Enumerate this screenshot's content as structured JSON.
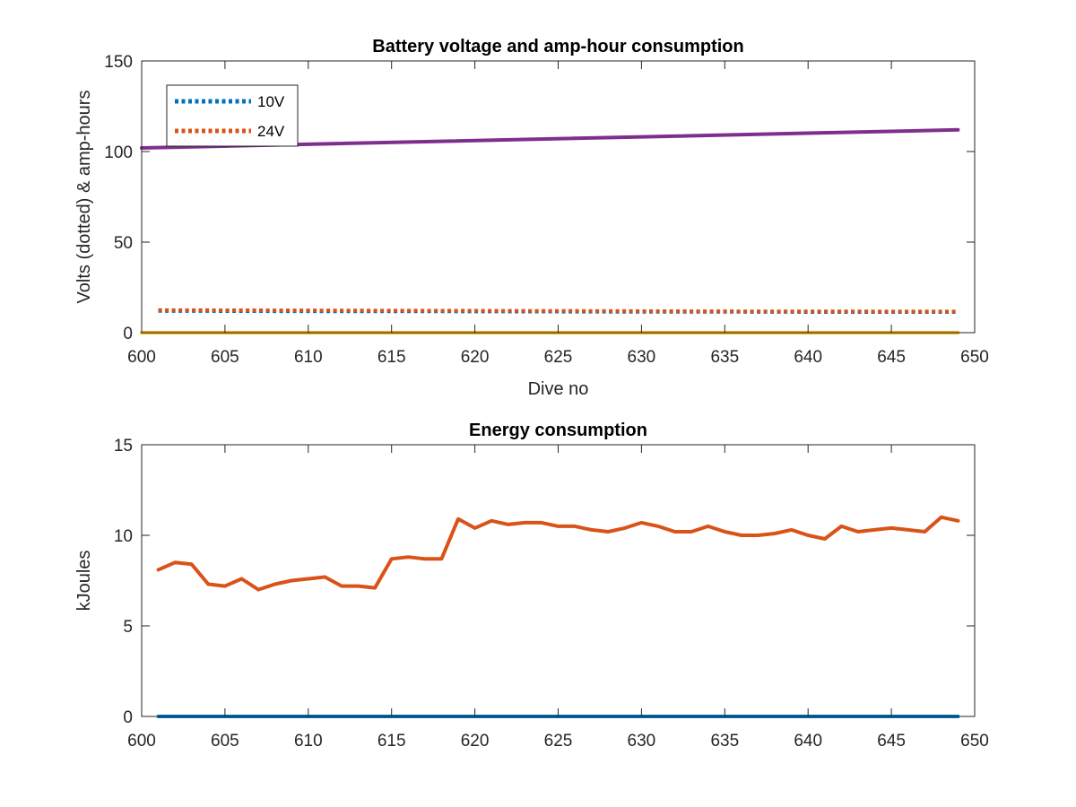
{
  "chart_data": [
    {
      "type": "line",
      "title": "Battery voltage and amp-hour consumption",
      "xlabel": "Dive no",
      "ylabel": "Volts (dotted) & amp-hours",
      "xlim": [
        600,
        650
      ],
      "ylim": [
        0,
        150
      ],
      "xticks": [
        "600",
        "605",
        "610",
        "615",
        "620",
        "625",
        "630",
        "635",
        "640",
        "645",
        "650"
      ],
      "yticks": [
        "0",
        "50",
        "100",
        "150"
      ],
      "grid": false,
      "legend": "top-left",
      "series": [
        {
          "name": "10V",
          "style": "dotted",
          "color": "#0072BD",
          "x": [
            601,
            606,
            611,
            616,
            621,
            626,
            631,
            636,
            641,
            646,
            649
          ],
          "values": [
            12.0,
            11.9,
            11.8,
            11.8,
            11.7,
            11.6,
            11.5,
            11.5,
            11.4,
            11.4,
            11.4
          ]
        },
        {
          "name": "24V",
          "style": "dotted",
          "color": "#D95319",
          "x": [
            601,
            606,
            611,
            616,
            621,
            626,
            631,
            636,
            641,
            646,
            649
          ],
          "values": [
            12.5,
            12.4,
            12.3,
            12.2,
            12.1,
            12.0,
            11.9,
            11.8,
            11.8,
            11.7,
            11.7
          ]
        },
        {
          "style": "solid",
          "color": "#7E2F8E",
          "x": [
            600,
            649
          ],
          "values": [
            102,
            112
          ]
        },
        {
          "style": "solid",
          "color": "#EDB120",
          "x": [
            600,
            649
          ],
          "values": [
            0,
            0
          ]
        }
      ]
    },
    {
      "type": "line",
      "title": "Energy consumption",
      "xlabel": "",
      "ylabel": "kJoules",
      "xlim": [
        600,
        650
      ],
      "ylim": [
        0,
        15
      ],
      "xticks": [
        "600",
        "605",
        "610",
        "615",
        "620",
        "625",
        "630",
        "635",
        "640",
        "645",
        "650"
      ],
      "yticks": [
        "0",
        "5",
        "10",
        "15"
      ],
      "grid": false,
      "series": [
        {
          "style": "solid",
          "color": "#D95319",
          "x": [
            601,
            602,
            603,
            604,
            605,
            606,
            607,
            608,
            609,
            610,
            611,
            612,
            613,
            614,
            615,
            616,
            617,
            618,
            619,
            620,
            621,
            622,
            623,
            624,
            625,
            626,
            627,
            628,
            629,
            630,
            631,
            632,
            633,
            634,
            635,
            636,
            637,
            638,
            639,
            640,
            641,
            642,
            643,
            644,
            645,
            646,
            647,
            648,
            649
          ],
          "values": [
            8.1,
            8.5,
            8.4,
            7.3,
            7.2,
            7.6,
            7.0,
            7.3,
            7.5,
            7.6,
            7.7,
            7.2,
            7.2,
            7.1,
            8.7,
            8.8,
            8.7,
            8.7,
            10.9,
            10.4,
            10.8,
            10.6,
            10.7,
            10.7,
            10.5,
            10.5,
            10.3,
            10.2,
            10.4,
            10.7,
            10.5,
            10.2,
            10.2,
            10.5,
            10.2,
            10.0,
            10.0,
            10.1,
            10.3,
            10.0,
            9.8,
            10.5,
            10.2,
            10.3,
            10.4,
            10.3,
            10.2,
            11.0,
            10.8
          ]
        },
        {
          "style": "solid",
          "color": "#0072BD",
          "x": [
            601,
            649
          ],
          "values": [
            0,
            0
          ]
        }
      ]
    }
  ]
}
